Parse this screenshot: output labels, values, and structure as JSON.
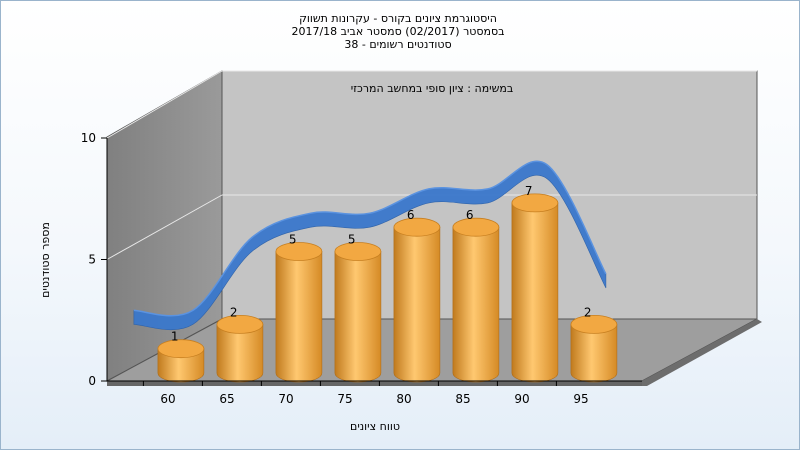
{
  "chart_data": {
    "type": "bar",
    "title_lines": [
      "היסטוגרמת ציונים בקורס - עקרונות תשווק",
      "בסמסטר  (02/2017)  סמסטר אביב 2017/18",
      "סטודנטים רשומים - 38"
    ],
    "subtitle": "במשימה : ציון סופי במחשב המרכזי",
    "xlabel": "טווח ציונים",
    "ylabel": "מספר סטודנטים",
    "ylim": [
      0,
      10
    ],
    "yticks": [
      0,
      5,
      10
    ],
    "xticks": [
      60,
      65,
      70,
      75,
      80,
      85,
      90,
      95
    ],
    "categories": [
      "60",
      "65",
      "70",
      "75",
      "80",
      "85",
      "90",
      "95"
    ],
    "values": [
      1,
      2,
      5,
      5,
      6,
      6,
      7,
      2
    ],
    "trend_line": [
      2,
      2,
      5,
      6,
      6,
      7,
      7,
      8,
      3.5
    ],
    "colors": {
      "bar": "#f2a842",
      "trend": "#3a78cc",
      "back_wall": "#c4c4c4",
      "side_wall": "#8a8a8a",
      "floor": "#9e9e9e"
    },
    "grid": true
  }
}
